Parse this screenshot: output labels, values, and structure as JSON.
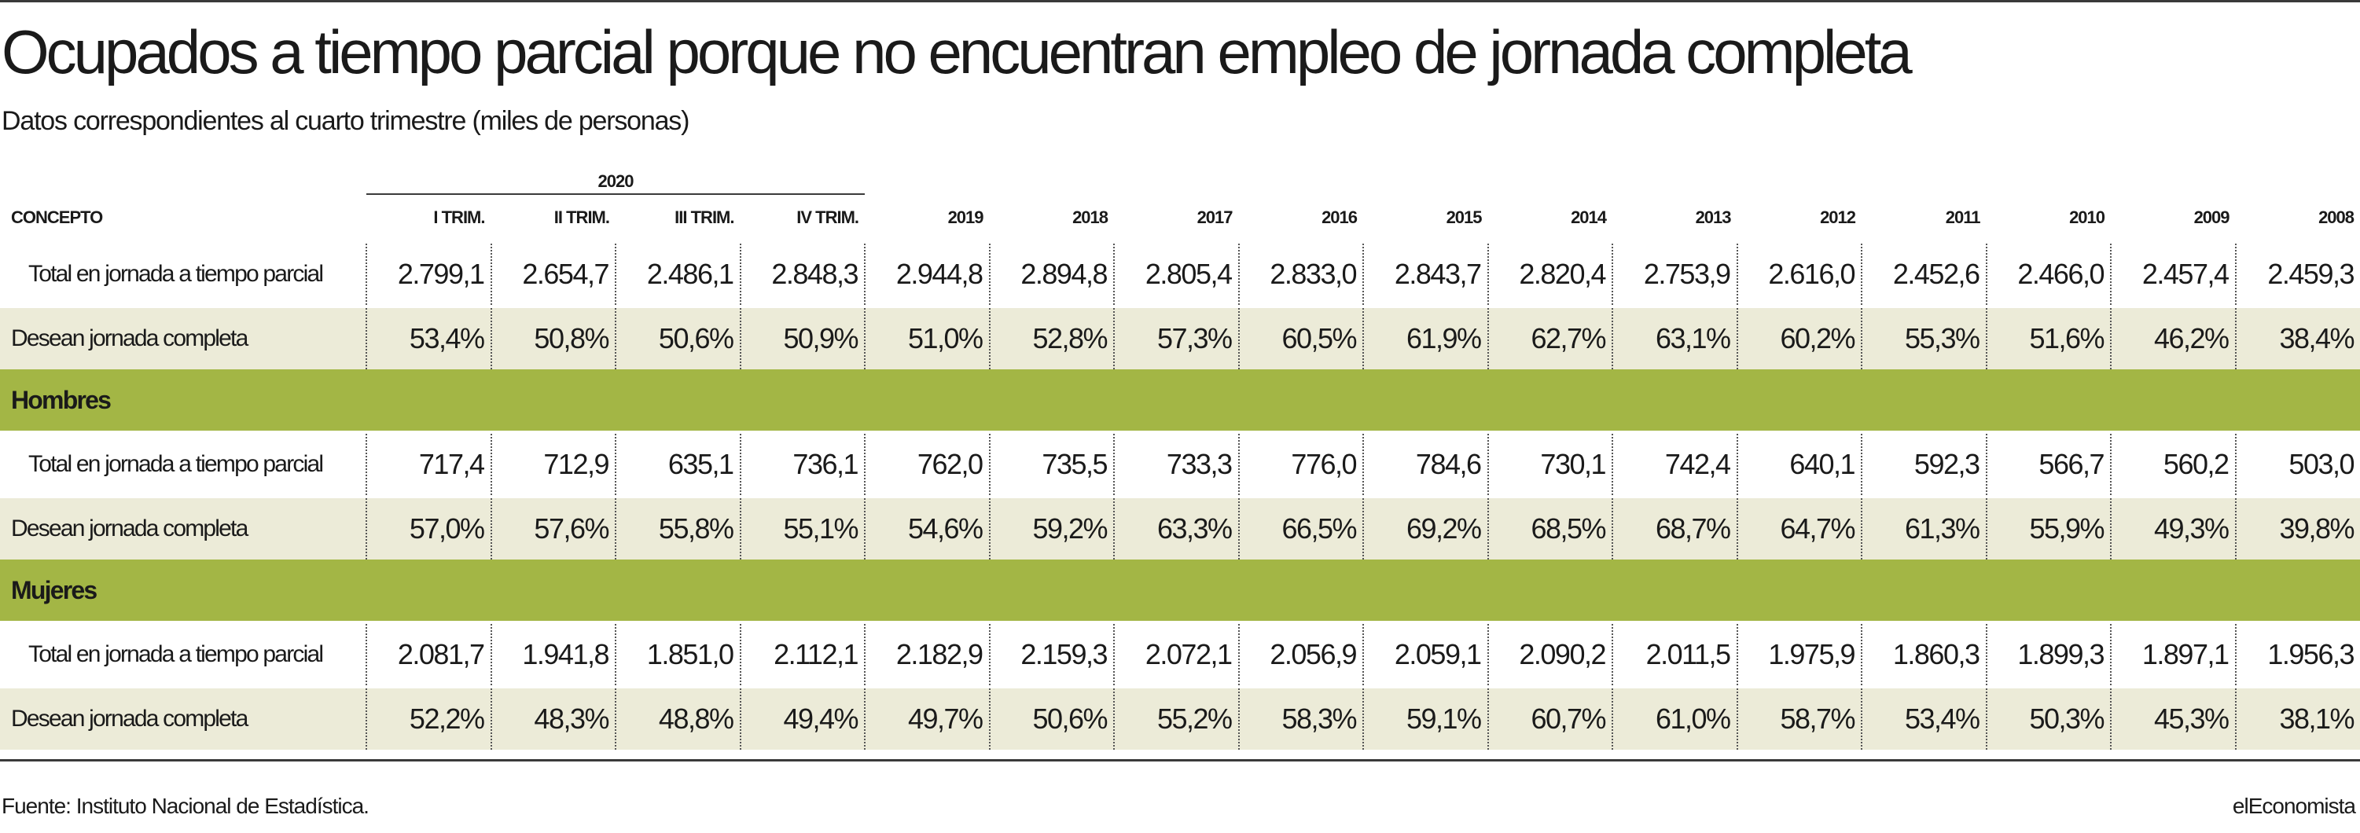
{
  "title": "Ocupados a tiempo parcial porque no encuentran empleo de jornada completa",
  "subtitle": "Datos correspondientes al cuarto trimestre (miles de personas)",
  "source": "Fuente: Instituto Nacional de Estadística.",
  "brand": "elEconomista",
  "colors": {
    "section_band": "#a3b645",
    "stripe": "#ecebd8",
    "rule": "#3a3a3a"
  },
  "chart_data": {
    "type": "table",
    "group_header": "2020",
    "concept_header": "CONCEPTO",
    "columns": [
      "I TRIM.",
      "II TRIM.",
      "III TRIM.",
      "IV TRIM.",
      "2019",
      "2018",
      "2017",
      "2016",
      "2015",
      "2014",
      "2013",
      "2012",
      "2011",
      "2010",
      "2009",
      "2008"
    ],
    "rows": [
      {
        "label": "Total en jornada a tiempo parcial",
        "kind": "total",
        "values": [
          "2.799,1",
          "2.654,7",
          "2.486,1",
          "2.848,3",
          "2.944,8",
          "2.894,8",
          "2.805,4",
          "2.833,0",
          "2.843,7",
          "2.820,4",
          "2.753,9",
          "2.616,0",
          "2.452,6",
          "2.466,0",
          "2.457,4",
          "2.459,3"
        ]
      },
      {
        "label": "Desean jornada completa",
        "kind": "desean",
        "values": [
          "53,4%",
          "50,8%",
          "50,6%",
          "50,9%",
          "51,0%",
          "52,8%",
          "57,3%",
          "60,5%",
          "61,9%",
          "62,7%",
          "63,1%",
          "60,2%",
          "55,3%",
          "51,6%",
          "46,2%",
          "38,4%"
        ]
      },
      {
        "label": "Hombres",
        "kind": "section"
      },
      {
        "label": "Total en jornada a tiempo parcial",
        "kind": "total",
        "values": [
          "717,4",
          "712,9",
          "635,1",
          "736,1",
          "762,0",
          "735,5",
          "733,3",
          "776,0",
          "784,6",
          "730,1",
          "742,4",
          "640,1",
          "592,3",
          "566,7",
          "560,2",
          "503,0"
        ]
      },
      {
        "label": "Desean jornada completa",
        "kind": "desean",
        "values": [
          "57,0%",
          "57,6%",
          "55,8%",
          "55,1%",
          "54,6%",
          "59,2%",
          "63,3%",
          "66,5%",
          "69,2%",
          "68,5%",
          "68,7%",
          "64,7%",
          "61,3%",
          "55,9%",
          "49,3%",
          "39,8%"
        ]
      },
      {
        "label": "Mujeres",
        "kind": "section"
      },
      {
        "label": "Total en jornada a tiempo parcial",
        "kind": "total",
        "values": [
          "2.081,7",
          "1.941,8",
          "1.851,0",
          "2.112,1",
          "2.182,9",
          "2.159,3",
          "2.072,1",
          "2.056,9",
          "2.059,1",
          "2.090,2",
          "2.011,5",
          "1.975,9",
          "1.860,3",
          "1.899,3",
          "1.897,1",
          "1.956,3"
        ]
      },
      {
        "label": "Desean jornada completa",
        "kind": "desean",
        "values": [
          "52,2%",
          "48,3%",
          "48,8%",
          "49,4%",
          "49,7%",
          "50,6%",
          "55,2%",
          "58,3%",
          "59,1%",
          "60,7%",
          "61,0%",
          "58,7%",
          "53,4%",
          "50,3%",
          "45,3%",
          "38,1%"
        ]
      }
    ]
  }
}
